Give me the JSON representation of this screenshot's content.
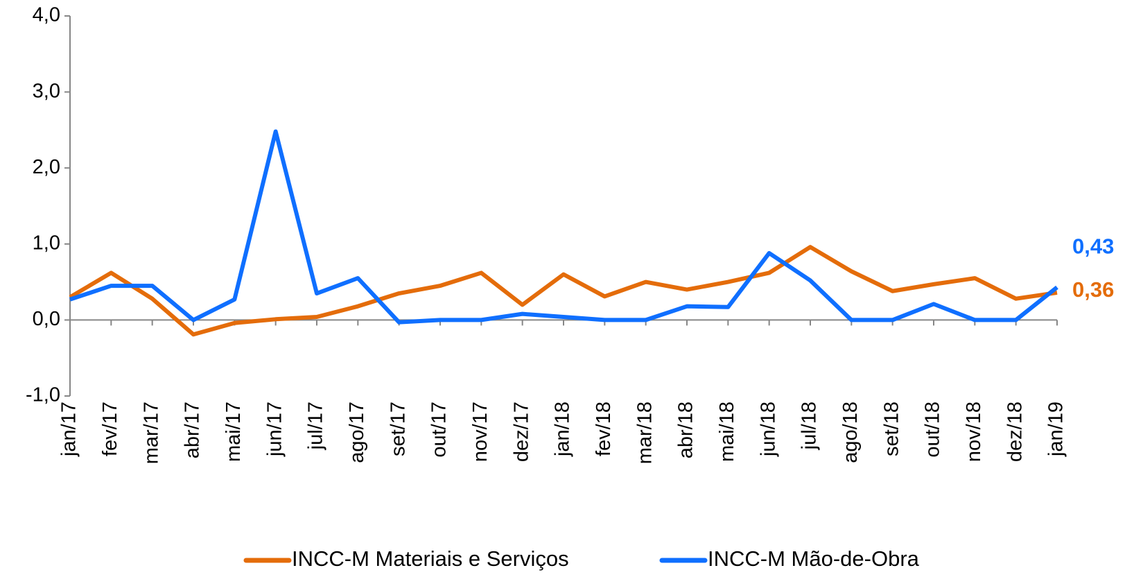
{
  "chart_data": {
    "type": "line",
    "categories": [
      "jan/17",
      "fev/17",
      "mar/17",
      "abr/17",
      "mai/17",
      "jun/17",
      "jul/17",
      "ago/17",
      "set/17",
      "out/17",
      "nov/17",
      "dez/17",
      "jan/18",
      "fev/18",
      "mar/18",
      "abr/18",
      "mai/18",
      "jun/18",
      "jul/18",
      "ago/18",
      "set/18",
      "out/18",
      "nov/18",
      "dez/18",
      "jan/19"
    ],
    "series": [
      {
        "name": "INCC-M Materiais e Serviços",
        "color": "#e46c0a",
        "values": [
          0.3,
          0.62,
          0.28,
          -0.19,
          -0.04,
          0.01,
          0.04,
          0.18,
          0.35,
          0.45,
          0.62,
          0.2,
          0.6,
          0.31,
          0.5,
          0.4,
          0.5,
          0.62,
          0.96,
          0.64,
          0.38,
          0.47,
          0.55,
          0.28,
          0.36
        ],
        "value_labels": [
          null,
          null,
          null,
          null,
          null,
          null,
          null,
          null,
          null,
          null,
          null,
          null,
          null,
          null,
          null,
          null,
          null,
          null,
          null,
          null,
          null,
          null,
          null,
          null,
          "0,36"
        ]
      },
      {
        "name": "INCC-M Mão-de-Obra",
        "color": "#0f6fff",
        "values": [
          0.27,
          0.45,
          0.45,
          0.0,
          0.27,
          2.48,
          0.35,
          0.55,
          -0.03,
          0.0,
          0.0,
          0.08,
          0.04,
          0.0,
          0.0,
          0.18,
          0.17,
          0.88,
          0.52,
          0.0,
          0.0,
          0.21,
          0.0,
          0.0,
          0.43
        ],
        "value_labels": [
          null,
          null,
          null,
          null,
          null,
          null,
          null,
          null,
          null,
          null,
          null,
          null,
          null,
          null,
          null,
          null,
          null,
          null,
          null,
          null,
          null,
          null,
          null,
          null,
          "0,43"
        ]
      }
    ],
    "ylim": [
      -1,
      4
    ],
    "yticks": [
      {
        "value": -1,
        "label": "-1,0"
      },
      {
        "value": 0,
        "label": "0,0"
      },
      {
        "value": 1,
        "label": "1,0"
      },
      {
        "value": 2,
        "label": "2,0"
      },
      {
        "value": 3,
        "label": "3,0"
      },
      {
        "value": 4,
        "label": "4,0"
      }
    ],
    "grid": false,
    "legend": "bottom"
  }
}
